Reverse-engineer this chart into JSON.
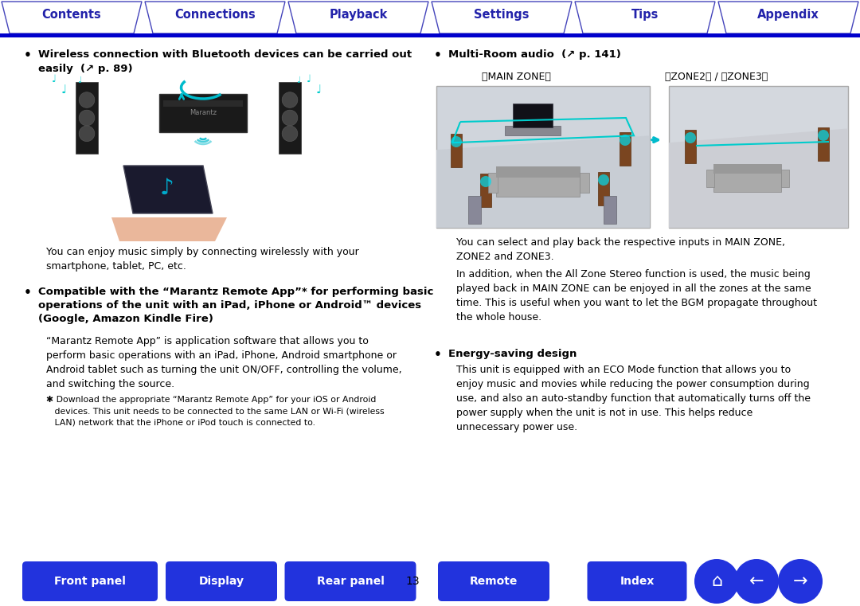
{
  "bg_color": "#ffffff",
  "top_tabs": [
    "Contents",
    "Connections",
    "Playback",
    "Settings",
    "Tips",
    "Appendix"
  ],
  "tab_border_color": "#4444bb",
  "tab_text_color": "#2222aa",
  "tab_line_color": "#0000cc",
  "bottom_buttons": [
    "Front panel",
    "Display",
    "Rear panel",
    "Remote",
    "Index"
  ],
  "btn_color": "#2233dd",
  "page_number": "13",
  "left_bullet1": "Wireless connection with Bluetooth devices can be carried out\neasily  (↗ p. 89)",
  "left_desc1": "You can enjoy music simply by connecting wirelessly with your\nsmartphone, tablet, PC, etc.",
  "left_bullet2": "Compatible with the “Marantz Remote App”* for performing basic\noperations of the unit with an iPad, iPhone or Android™ devices\n(Google, Amazon Kindle Fire)",
  "left_desc2": "“Marantz Remote App” is application software that allows you to\nperform basic operations with an iPad, iPhone, Android smartphone or\nAndroid tablet such as turning the unit ON/OFF, controlling the volume,\nand switching the source.",
  "left_footnote": "✱ Download the appropriate “Marantz Remote App” for your iOS or Android\n   devices. This unit needs to be connected to the same LAN or Wi-Fi (wireless\n   LAN) network that the iPhone or iPod touch is connected to.",
  "right_bullet1": "Multi-Room audio  (↗ p. 141)",
  "right_label1": "［MAIN ZONE］",
  "right_label2": "［ZONE2］ / ［ZONE3］",
  "right_desc1": "You can select and play back the respective inputs in MAIN ZONE,\nZONE2 and ZONE3.",
  "right_desc2": "In addition, when the All Zone Stereo function is used, the music being\nplayed back in MAIN ZONE can be enjoyed in all the zones at the same\ntime. This is useful when you want to let the BGM propagate throughout\nthe whole house.",
  "right_bullet2": "Energy-saving design",
  "right_desc3": "This unit is equipped with an ECO Mode function that allows you to\nenjoy music and movies while reducing the power consumption during\nuse, and also an auto-standby function that automatically turns off the\npower supply when the unit is not in use. This helps reduce\nunnecessary power use."
}
